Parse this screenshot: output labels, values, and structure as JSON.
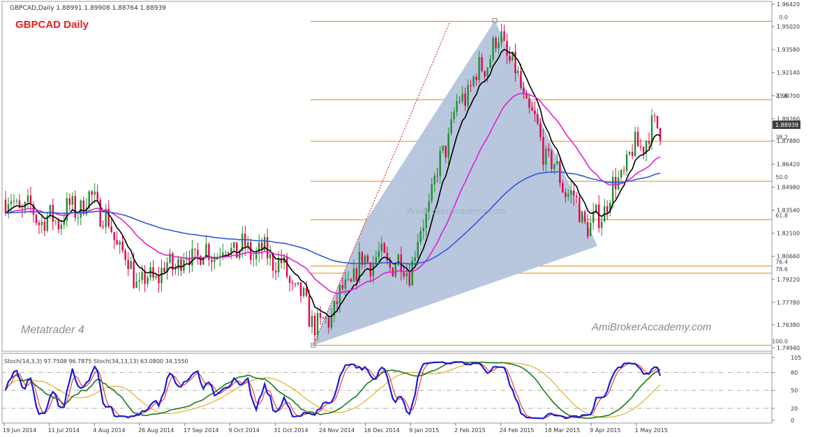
{
  "window": {
    "header": "GBPCAD,Daily  1.88991 1.89908 1.88764 1.88939",
    "chart_title": "GBPCAD Daily",
    "watermark_left": "Metatrader 4",
    "watermark_right": "AmiBrokerAccademy.com",
    "watermark_center": "AmiBrokerAcademy.com"
  },
  "colors": {
    "bull": "#1e8f2e",
    "bear": "#e8004a",
    "ma_fast": "#000000",
    "ma_mid": "#e020d0",
    "ma_slow": "#2a5bd7",
    "fib": "#e08a00",
    "pattern_fill": "#b4c4dc",
    "title": "#e02020",
    "stoch_fast": "#1a1ad8",
    "stoch_fast_signal": "#e02020",
    "stoch_slow": "#1a7a1a",
    "stoch_slow_signal": "#e0a000"
  },
  "chart_data": [
    {
      "type": "candlestick",
      "symbol": "GBPCAD",
      "timeframe": "Daily",
      "ohlc_last": {
        "open": 1.88991,
        "high": 1.89908,
        "low": 1.88764,
        "close": 1.88939
      },
      "current_price_label": "1.88939",
      "ylim": [
        1.7494,
        1.9642
      ],
      "y_ticks": [
        "1.96420",
        "1.95020",
        "1.93580",
        "1.92140",
        "1.90700",
        "1.89260",
        "1.87880",
        "1.86420",
        "1.84980",
        "1.83540",
        "1.82100",
        "1.80660",
        "1.79220",
        "1.77780",
        "1.76380",
        "1.74940"
      ],
      "x_ticks": [
        "19 Jun 2014",
        "11 Jul 2014",
        "4 Aug 2014",
        "26 Aug 2014",
        "17 Sep 2014",
        "9 Oct 2014",
        "31 Oct 2014",
        "24 Nov 2014",
        "16 Dec 2014",
        "9 Jan 2015",
        "2 Feb 2015",
        "24 Feb 2015",
        "18 Mar 2015",
        "9 Apr 2015",
        "1 May 2015"
      ],
      "fibonacci": [
        {
          "label": "0.0",
          "price": 1.9535
        },
        {
          "label": "23.6",
          "price": 1.9045
        },
        {
          "label": "38.2",
          "price": 1.8785
        },
        {
          "label": "50.0",
          "price": 1.8535
        },
        {
          "label": "61.8",
          "price": 1.8295
        },
        {
          "label": "76.4",
          "price": 1.8005
        },
        {
          "label": "78.6",
          "price": 1.796
        },
        {
          "label": "100.0",
          "price": 1.751
        }
      ],
      "pattern_points": [
        {
          "date": "24 Nov 2014",
          "price": 1.751
        },
        {
          "date": "24 Feb 2015",
          "price": 1.954
        },
        {
          "date": "9 Apr 2015",
          "price": 1.813
        },
        {
          "date": "16 Dec 2014",
          "price": 1.828
        }
      ],
      "close_path": [
        {
          "date": "19 Jun 2014",
          "price": 1.842
        },
        {
          "date": "11 Jul 2014",
          "price": 1.828
        },
        {
          "date": "4 Aug 2014",
          "price": 1.843
        },
        {
          "date": "26 Aug 2014",
          "price": 1.788
        },
        {
          "date": "17 Sep 2014",
          "price": 1.806
        },
        {
          "date": "9 Oct 2014",
          "price": 1.812
        },
        {
          "date": "31 Oct 2014",
          "price": 1.806
        },
        {
          "date": "24 Nov 2014",
          "price": 1.76
        },
        {
          "date": "16 Dec 2014",
          "price": 1.806
        },
        {
          "date": "9 Jan 2015",
          "price": 1.8
        },
        {
          "date": "2 Feb 2015",
          "price": 1.898
        },
        {
          "date": "24 Feb 2015",
          "price": 1.944
        },
        {
          "date": "18 Mar 2015",
          "price": 1.87
        },
        {
          "date": "9 Apr 2015",
          "price": 1.823
        },
        {
          "date": "1 May 2015",
          "price": 1.875
        },
        {
          "date": "13 May 2015",
          "price": 1.889
        }
      ]
    },
    {
      "type": "line",
      "title": "Stoch(14,3,3) 97.7508 96.7875  Stoch(34,13,13) 63.0800 34.1550",
      "ylim": [
        0,
        105
      ],
      "y_ticks": [
        "105",
        "80",
        "50",
        "20",
        "0"
      ],
      "series": [
        {
          "name": "Stoch(14,3,3) main",
          "values": [
            97.7508
          ]
        },
        {
          "name": "Stoch(14,3,3) signal",
          "values": [
            96.7875
          ]
        },
        {
          "name": "Stoch(34,13,13) main",
          "values": [
            63.08
          ]
        },
        {
          "name": "Stoch(34,13,13) signal",
          "values": [
            34.155
          ]
        }
      ]
    }
  ]
}
